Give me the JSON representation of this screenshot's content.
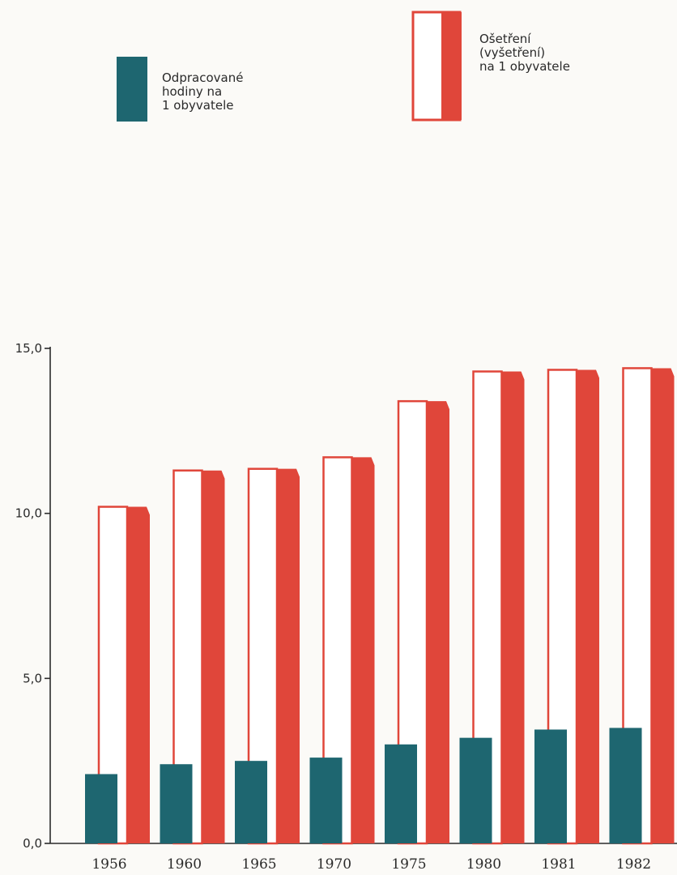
{
  "colors": {
    "teal": "#1e6670",
    "red": "#e0463a",
    "red_dark": "#c4322b",
    "axis": "#2b2b2b",
    "background": "#fbfaf7"
  },
  "legend": {
    "hours_label_lines": [
      "Odpracované",
      "hodiny na",
      "1 obyvatele"
    ],
    "visits_label_lines": [
      "Ošetření",
      "(vyšetření)",
      "na 1 obyvatele"
    ]
  },
  "chart_data": {
    "type": "bar",
    "categories": [
      "1956",
      "1960",
      "1965",
      "1970",
      "1975",
      "1980",
      "1981",
      "1982"
    ],
    "series": [
      {
        "name": "Odpracované hodiny na 1 obyvatele",
        "values": [
          2.1,
          2.4,
          2.5,
          2.6,
          3.0,
          3.2,
          3.45,
          3.5
        ]
      },
      {
        "name": "Ošetření (vyšetření) na 1 obyvatele",
        "values": [
          10.2,
          11.3,
          11.35,
          11.7,
          13.4,
          14.3,
          14.35,
          14.4
        ]
      }
    ],
    "yticks": [
      "0,0",
      "5,0",
      "10,0",
      "15,0"
    ],
    "ylim": [
      0,
      15
    ],
    "title": "",
    "xlabel": "",
    "ylabel": "",
    "grid": false,
    "legend_position": "top"
  }
}
